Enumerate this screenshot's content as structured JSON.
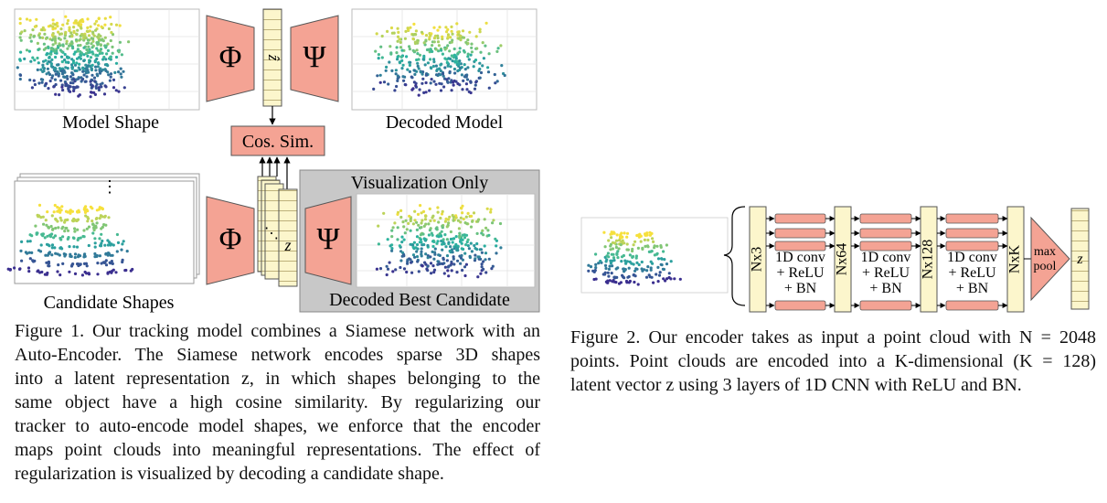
{
  "figure1": {
    "phi_symbol": "Φ",
    "psi_symbol": "Ψ",
    "z_hat_symbol": "ẑ",
    "z_symbol": "z",
    "dots": "⋮",
    "dots_diag": "⋱",
    "labels": {
      "model_shape": "Model Shape",
      "decoded_model": "Decoded Model",
      "cos_sim": "Cos. Sim.",
      "visualization_only": "Visualization Only",
      "candidate_shapes": "Candidate Shapes",
      "decoded_best_candidate": "Decoded Best Candidate"
    },
    "caption_lines": [
      "Figure 1. Our tracking model combines a Siamese network with an",
      "Auto-Encoder.  The Siamese network encodes sparse 3D shapes",
      "into a latent representation z, in which shapes belonging to the",
      "same object have a high cosine similarity.  By regularizing our",
      "tracker to auto-encode model shapes, we enforce that the encoder",
      "maps point clouds into meaningful representations.  The effect of",
      "regularization is visualized by decoding a candidate shape."
    ]
  },
  "figure2": {
    "layers": [
      {
        "dim": "Nx3",
        "conv": [
          "1D conv",
          "+ ReLU",
          "+ BN"
        ]
      },
      {
        "dim": "Nx64",
        "conv": [
          "1D conv",
          "+ ReLU",
          "+ BN"
        ]
      },
      {
        "dim": "Nx128",
        "conv": [
          "1D conv",
          "+ ReLU",
          "+ BN"
        ]
      }
    ],
    "final_dim": "NxK",
    "pool_label": [
      "max",
      "pool"
    ],
    "z_symbol": "z",
    "caption_lines": [
      "Figure 2. Our encoder takes as input a point cloud with N = 2048",
      "points. Point clouds are encoded into a K-dimensional (K = 128)",
      "latent vector z using 3 layers of 1D CNN with ReLU and BN."
    ]
  },
  "colors": {
    "salmon": "#f4a394",
    "cream": "#fcf6cc",
    "gray_box": "#c8c8c8",
    "point_low": "#3b2f8f",
    "point_mid": "#2ab3a0",
    "point_high": "#f6e03c"
  }
}
